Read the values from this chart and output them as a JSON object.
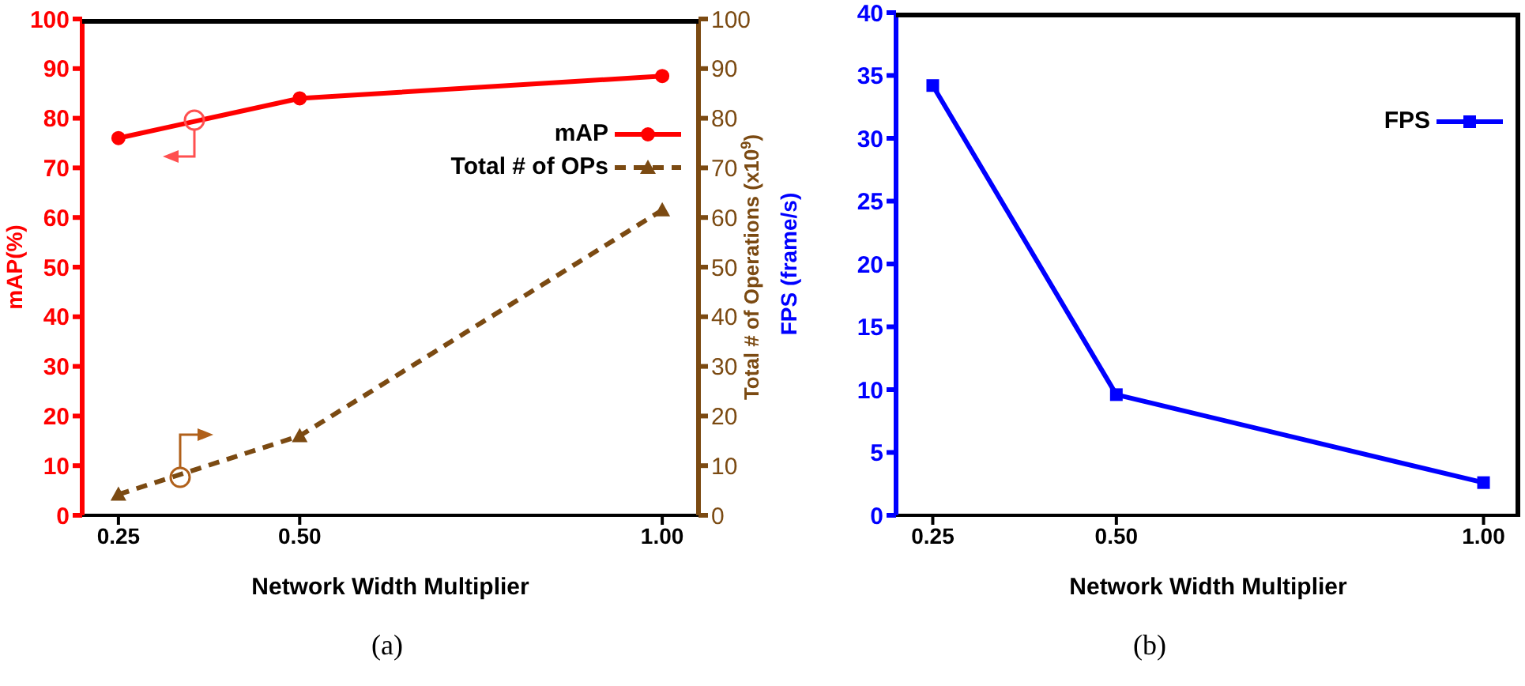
{
  "chart_data": [
    {
      "type": "line",
      "x": [
        0.25,
        0.5,
        1.0
      ],
      "xlabel": "Network Width Multiplier",
      "ylabel": "mAP(%)",
      "y2label": "Total # of Operations (x10$^{9}$)",
      "xlim": [
        0.2,
        1.05
      ],
      "xticks": [
        {
          "value": 0.25,
          "label": "0.25"
        },
        {
          "value": 0.5,
          "label": "0.50"
        },
        {
          "value": 1.0,
          "label": "1.00"
        }
      ],
      "ylim": [
        0,
        100
      ],
      "yticks": [
        0,
        10,
        20,
        30,
        40,
        50,
        60,
        70,
        80,
        90,
        100
      ],
      "y2lim": [
        0,
        100
      ],
      "y2ticks": [
        0,
        10,
        20,
        30,
        40,
        50,
        60,
        70,
        80,
        90,
        100
      ],
      "legend": "top right",
      "grid": false,
      "annotations": [
        "(a)"
      ],
      "series": [
        {
          "name": "mAP",
          "color": "#ff0000",
          "values": [
            76,
            84,
            88.5
          ],
          "marker": "circle",
          "line_style": "solid"
        },
        {
          "name": "Total # of OPs",
          "color": "#7b4a12",
          "values": [
            4.2,
            16,
            61.5
          ],
          "marker": "triangle",
          "line_style": "dashed",
          "axis": "y2"
        }
      ]
    },
    {
      "type": "line",
      "x": [
        0.25,
        0.5,
        1.0
      ],
      "xlabel": "Network Width Multiplier",
      "ylabel": "FPS (frame/s)",
      "xlim": [
        0.2,
        1.05
      ],
      "xticks": [
        {
          "value": 0.25,
          "label": "0.25"
        },
        {
          "value": 0.5,
          "label": "0.50"
        },
        {
          "value": 1.0,
          "label": "1.00"
        }
      ],
      "ylim": [
        0,
        40
      ],
      "yticks": [
        0,
        5,
        10,
        15,
        20,
        25,
        30,
        35,
        40
      ],
      "legend": "top right",
      "grid": false,
      "annotations": [
        "(b)"
      ],
      "series": [
        {
          "name": "FPS",
          "color": "#0000ff",
          "values": [
            34.2,
            9.6,
            2.6
          ],
          "marker": "square",
          "line_style": "solid"
        }
      ]
    }
  ]
}
